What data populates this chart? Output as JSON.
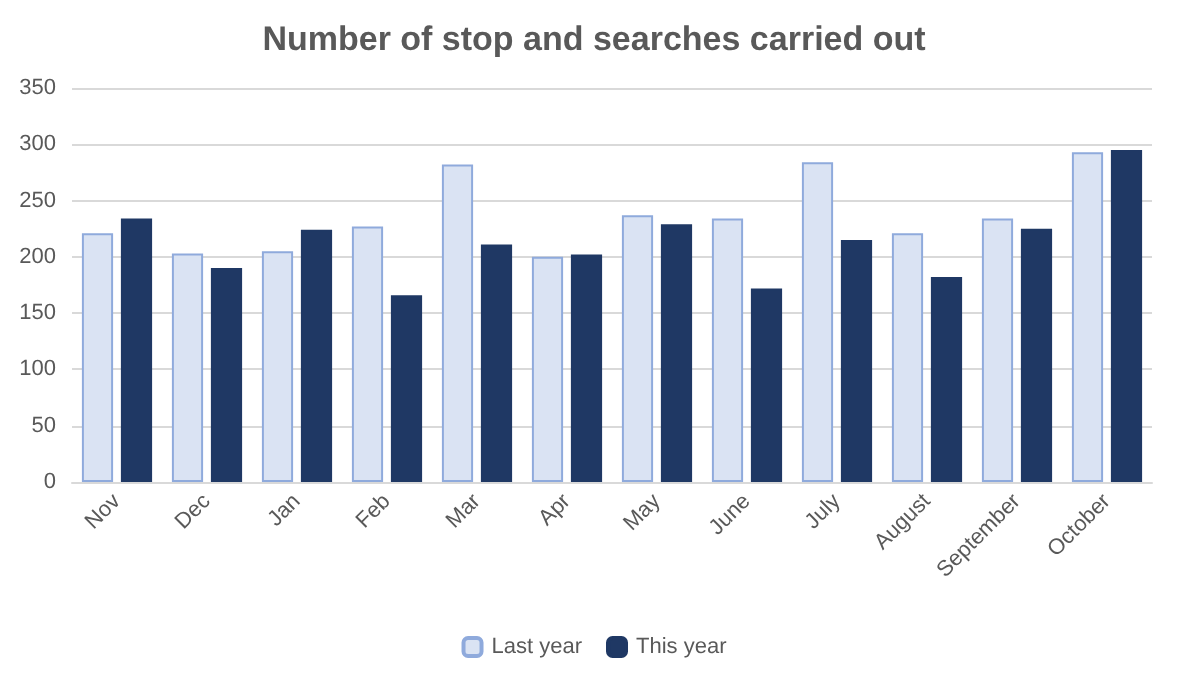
{
  "chart_data": {
    "type": "bar",
    "title": "Number of stop and searches carried out",
    "categories": [
      "Nov",
      "Dec",
      "Jan",
      "Feb",
      "Mar",
      "Apr",
      "May",
      "June",
      "July",
      "August",
      "September",
      "October"
    ],
    "series": [
      {
        "name": "Last year",
        "color": "#dae3f3",
        "values": [
          221,
          203,
          205,
          227,
          282,
          200,
          237,
          234,
          284,
          221,
          234,
          293
        ]
      },
      {
        "name": "This year",
        "color": "#1f3864",
        "values": [
          234,
          190,
          224,
          166,
          211,
          202,
          229,
          172,
          215,
          182,
          225,
          295
        ]
      }
    ],
    "ylim": [
      0,
      350
    ],
    "yticks": [
      0,
      50,
      100,
      150,
      200,
      250,
      300,
      350
    ],
    "grid": "y",
    "legend": "bottom"
  }
}
